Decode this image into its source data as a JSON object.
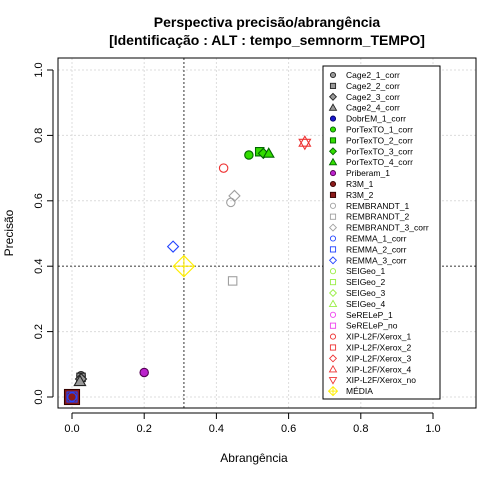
{
  "chart_data": {
    "type": "scatter",
    "title": "Perspectiva precisão/abrangência",
    "subtitle": "[Identificação : ALT : tempo_semnorm_TEMPO]",
    "xlabel": "Abrangência",
    "ylabel": "Precisão",
    "xlim": [
      0,
      1
    ],
    "ylim": [
      0,
      1
    ],
    "x_ticks": [
      "0.0",
      "0.2",
      "0.4",
      "0.6",
      "0.8",
      "1.0"
    ],
    "y_ticks": [
      "0.0",
      "0.2",
      "0.4",
      "0.6",
      "0.8",
      "1.0"
    ],
    "grid": true,
    "legend_position": "right",
    "reference_lines": {
      "x": 0.31,
      "y": 0.4
    },
    "series": [
      {
        "name": "Cage2_1_corr",
        "marker": "circle",
        "stroke": "#222222",
        "fill": "#999999",
        "points": [
          [
            0.025,
            0.065
          ]
        ]
      },
      {
        "name": "Cage2_2_corr",
        "marker": "square",
        "stroke": "#222222",
        "fill": "#999999",
        "points": [
          [
            0.025,
            0.06
          ]
        ]
      },
      {
        "name": "Cage2_3_corr",
        "marker": "diamond",
        "stroke": "#222222",
        "fill": "#999999",
        "points": [
          [
            0.025,
            0.055
          ]
        ]
      },
      {
        "name": "Cage2_4_corr",
        "marker": "triangle",
        "stroke": "#222222",
        "fill": "#999999",
        "points": [
          [
            0.022,
            0.048
          ]
        ]
      },
      {
        "name": "DobrEM_1_corr",
        "marker": "circle",
        "stroke": "#000066",
        "fill": "#1a1acc",
        "points": [
          [
            0.005,
            0.005
          ]
        ]
      },
      {
        "name": "PorTexTO_1_corr",
        "marker": "circle",
        "stroke": "#006600",
        "fill": "#33dd00",
        "points": [
          [
            0.49,
            0.74
          ]
        ]
      },
      {
        "name": "PorTexTO_2_corr",
        "marker": "square",
        "stroke": "#006600",
        "fill": "#33dd00",
        "points": [
          [
            0.52,
            0.75
          ]
        ]
      },
      {
        "name": "PorTexTO_3_corr",
        "marker": "diamond",
        "stroke": "#006600",
        "fill": "#33dd00",
        "points": [
          [
            0.53,
            0.745
          ]
        ]
      },
      {
        "name": "PorTexTO_4_corr",
        "marker": "triangle",
        "stroke": "#006600",
        "fill": "#33dd00",
        "points": [
          [
            0.545,
            0.745
          ]
        ]
      },
      {
        "name": "Priberam_1",
        "marker": "circle",
        "stroke": "#550055",
        "fill": "#bb22cc",
        "points": [
          [
            0.2,
            0.075
          ]
        ]
      },
      {
        "name": "R3M_1",
        "marker": "circle",
        "stroke": "#330000",
        "fill": "#8b1a1a",
        "points": [
          [
            0.0,
            0.0
          ]
        ]
      },
      {
        "name": "R3M_2",
        "marker": "square",
        "stroke": "#330000",
        "fill": "#8b1a1a",
        "points": [
          [
            0.0,
            0.0
          ]
        ]
      },
      {
        "name": "REMBRANDT_1",
        "marker": "circle",
        "stroke": "#a0a0a0",
        "fill": "none",
        "points": [
          [
            0.44,
            0.595
          ]
        ]
      },
      {
        "name": "REMBRANDT_2",
        "marker": "square",
        "stroke": "#a0a0a0",
        "fill": "none",
        "points": [
          [
            0.445,
            0.355
          ]
        ]
      },
      {
        "name": "REMBRANDT_3_corr",
        "marker": "diamond",
        "stroke": "#a0a0a0",
        "fill": "none",
        "points": [
          [
            0.45,
            0.615
          ]
        ]
      },
      {
        "name": "REMMA_1_corr",
        "marker": "circle",
        "stroke": "#2244ff",
        "fill": "none",
        "points": [
          [
            0.0,
            0.0
          ]
        ]
      },
      {
        "name": "REMMA_2_corr",
        "marker": "square",
        "stroke": "#2244ff",
        "fill": "none",
        "points": [
          [
            0.0,
            0.0
          ]
        ]
      },
      {
        "name": "REMMA_3_corr",
        "marker": "diamond",
        "stroke": "#2244ff",
        "fill": "none",
        "points": [
          [
            0.28,
            0.46
          ]
        ]
      },
      {
        "name": "SEIGeo_1",
        "marker": "circle",
        "stroke": "#99ee44",
        "fill": "none",
        "points": []
      },
      {
        "name": "SEIGeo_2",
        "marker": "square",
        "stroke": "#99ee44",
        "fill": "none",
        "points": []
      },
      {
        "name": "SEIGeo_3",
        "marker": "diamond",
        "stroke": "#99ee44",
        "fill": "none",
        "points": []
      },
      {
        "name": "SEIGeo_4",
        "marker": "triangle",
        "stroke": "#99ee44",
        "fill": "none",
        "points": []
      },
      {
        "name": "SeRELeP_1",
        "marker": "circle",
        "stroke": "#ee44ee",
        "fill": "none",
        "points": []
      },
      {
        "name": "SeRELeP_no",
        "marker": "square",
        "stroke": "#ee44ee",
        "fill": "none",
        "points": []
      },
      {
        "name": "XIP-L2F/Xerox_1",
        "marker": "circle",
        "stroke": "#ee3333",
        "fill": "none",
        "points": [
          [
            0.42,
            0.7
          ]
        ]
      },
      {
        "name": "XIP-L2F/Xerox_2",
        "marker": "square",
        "stroke": "#ee3333",
        "fill": "none",
        "points": []
      },
      {
        "name": "XIP-L2F/Xerox_3",
        "marker": "diamond",
        "stroke": "#ee3333",
        "fill": "none",
        "points": []
      },
      {
        "name": "XIP-L2F/Xerox_4",
        "marker": "triangle",
        "stroke": "#ee3333",
        "fill": "none",
        "points": [
          [
            0.645,
            0.78
          ]
        ]
      },
      {
        "name": "XIP-L2F/Xerox_no",
        "marker": "triangle-down",
        "stroke": "#ee3333",
        "fill": "none",
        "points": [
          [
            0.645,
            0.775
          ]
        ]
      },
      {
        "name": "MÉDIA",
        "marker": "average",
        "stroke": "#ffee00",
        "fill": "none",
        "points": [
          [
            0.31,
            0.4
          ]
        ]
      }
    ]
  }
}
